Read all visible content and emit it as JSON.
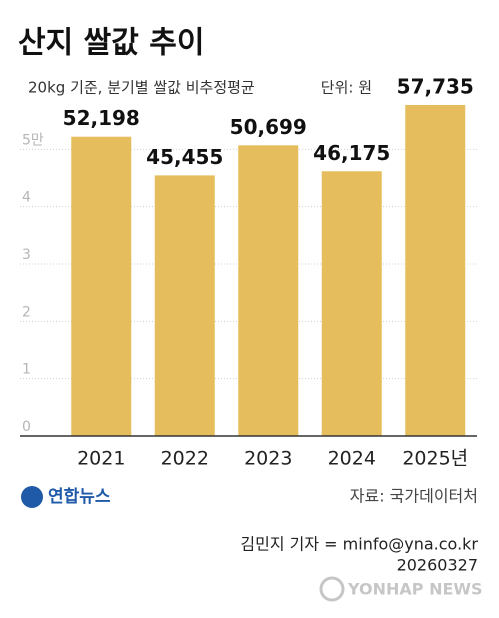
{
  "chart_data": {
    "type": "bar",
    "title": "산지 쌀값 추이",
    "subtitle": "20kg 기준, 분기별 쌀값 비추정평균",
    "unit": "단위: 원",
    "categories": [
      "2021",
      "2022",
      "2023",
      "2024",
      "2025년"
    ],
    "values": [
      52198,
      45455,
      50699,
      46175,
      57735
    ],
    "value_labels": [
      "52,198",
      "45,455",
      "50,699",
      "46,175",
      "57,735"
    ],
    "color": "#e6bd5c",
    "ylim": [
      0,
      60000
    ],
    "yticks": [
      0,
      {
        "value": 10000,
        "label": "1"
      },
      {
        "value": 20000,
        "label": "2"
      },
      {
        "value": 30000,
        "label": "3"
      },
      {
        "value": 40000,
        "label": "4"
      },
      {
        "value": 50000,
        "label": "5만"
      }
    ],
    "grid": true,
    "source": "자료: 국가데이터처",
    "logo": "연합뉴스",
    "byline": "김민지 기자 = minfo@yna.co.kr",
    "date": "20260327",
    "watermark": "YONHAP NEWS"
  }
}
